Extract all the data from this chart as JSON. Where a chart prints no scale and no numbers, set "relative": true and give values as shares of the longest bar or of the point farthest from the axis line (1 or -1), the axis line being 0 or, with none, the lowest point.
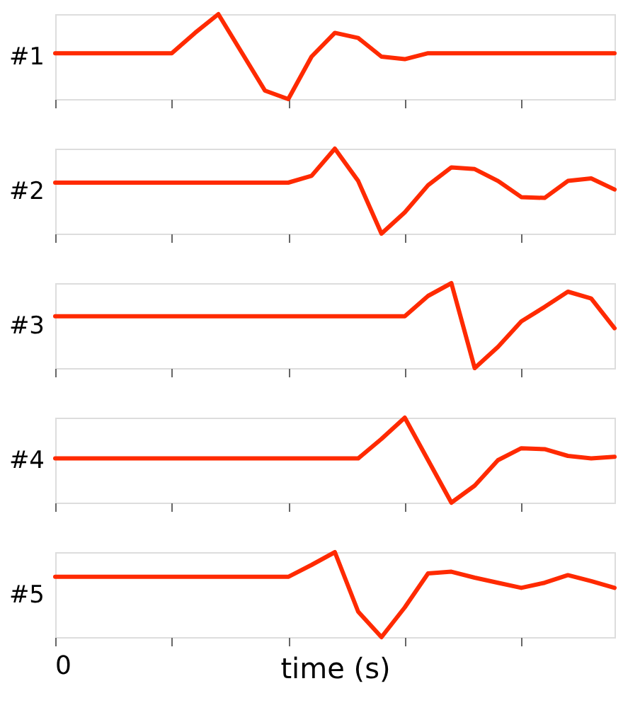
{
  "chart_data": [
    {
      "type": "line",
      "relative": true,
      "ylabel": "#1",
      "categories": [
        null,
        null,
        null,
        null,
        null,
        null,
        null,
        null,
        null,
        null,
        null,
        null,
        null,
        null,
        null,
        null,
        null,
        null,
        null,
        null,
        null,
        null,
        null,
        null,
        null
      ],
      "series": [
        {
          "color": "#ff2a00",
          "values": [
            0.54,
            0.54,
            0.54,
            0.54,
            0.54,
            0.54,
            0.78,
            1.0,
            0.55,
            0.1,
            0.0,
            0.5,
            0.78,
            0.72,
            0.5,
            0.47,
            0.54,
            0.54,
            0.54,
            0.54,
            0.54,
            0.54,
            0.54,
            0.54,
            0.54
          ]
        }
      ]
    },
    {
      "type": "line",
      "relative": true,
      "ylabel": "#2",
      "categories": [
        null,
        null,
        null,
        null,
        null,
        null,
        null,
        null,
        null,
        null,
        null,
        null,
        null,
        null,
        null,
        null,
        null,
        null,
        null,
        null,
        null,
        null,
        null,
        null,
        null
      ],
      "series": [
        {
          "color": "#ff2a00",
          "values": [
            0.6,
            0.6,
            0.6,
            0.6,
            0.6,
            0.6,
            0.6,
            0.6,
            0.6,
            0.6,
            0.6,
            0.68,
            1.0,
            0.62,
            0.0,
            0.25,
            0.57,
            0.78,
            0.76,
            0.62,
            0.43,
            0.42,
            0.62,
            0.65,
            0.52
          ]
        }
      ]
    },
    {
      "type": "line",
      "relative": true,
      "ylabel": "#3",
      "categories": [
        null,
        null,
        null,
        null,
        null,
        null,
        null,
        null,
        null,
        null,
        null,
        null,
        null,
        null,
        null,
        null,
        null,
        null,
        null,
        null,
        null,
        null,
        null,
        null,
        null
      ],
      "series": [
        {
          "color": "#ff2a00",
          "values": [
            0.61,
            0.61,
            0.61,
            0.61,
            0.61,
            0.61,
            0.61,
            0.61,
            0.61,
            0.61,
            0.61,
            0.61,
            0.61,
            0.61,
            0.61,
            0.61,
            0.85,
            1.0,
            0.0,
            0.25,
            0.55,
            0.72,
            0.9,
            0.82,
            0.47
          ]
        }
      ]
    },
    {
      "type": "line",
      "relative": true,
      "ylabel": "#4",
      "categories": [
        null,
        null,
        null,
        null,
        null,
        null,
        null,
        null,
        null,
        null,
        null,
        null,
        null,
        null,
        null,
        null,
        null,
        null,
        null,
        null,
        null,
        null,
        null,
        null,
        null
      ],
      "series": [
        {
          "color": "#ff2a00",
          "values": [
            0.52,
            0.52,
            0.52,
            0.52,
            0.52,
            0.52,
            0.52,
            0.52,
            0.52,
            0.52,
            0.52,
            0.52,
            0.52,
            0.52,
            0.75,
            1.0,
            0.5,
            0.0,
            0.2,
            0.5,
            0.64,
            0.63,
            0.55,
            0.52,
            0.54
          ]
        }
      ]
    },
    {
      "type": "line",
      "relative": true,
      "ylabel": "#5",
      "xlabel": "time (s)",
      "annotations": [
        "0"
      ],
      "categories": [
        null,
        null,
        null,
        null,
        null,
        null,
        null,
        null,
        null,
        null,
        null,
        null,
        null,
        null,
        null,
        null,
        null,
        null,
        null,
        null,
        null,
        null,
        null,
        null,
        null
      ],
      "series": [
        {
          "color": "#ff2a00",
          "values": [
            0.71,
            0.71,
            0.71,
            0.71,
            0.71,
            0.71,
            0.71,
            0.71,
            0.71,
            0.71,
            0.71,
            0.85,
            1.0,
            0.3,
            0.0,
            0.35,
            0.75,
            0.77,
            0.7,
            0.64,
            0.58,
            0.64,
            0.73,
            0.66,
            0.58
          ]
        }
      ]
    }
  ]
}
